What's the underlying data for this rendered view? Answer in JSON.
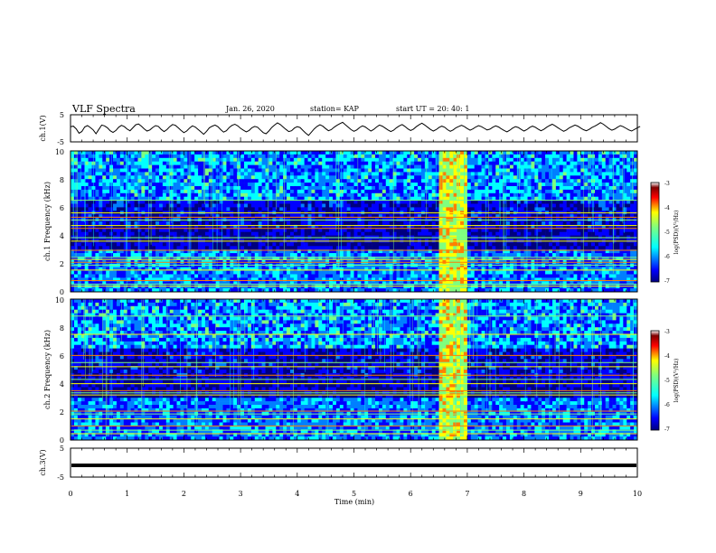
{
  "header": {
    "title": "VLF Spectra",
    "date": "Jan. 26, 2020",
    "station": "station= KAP",
    "start": "start  UT =   20: 40: 1"
  },
  "chart_data": [
    {
      "type": "line",
      "ylabel": "ch.1(V)",
      "ylim": [
        -5,
        5
      ],
      "yticks": [
        "5",
        "-5"
      ],
      "xlim": [
        0,
        10
      ],
      "x_step": 0.05,
      "y": [
        0.6,
        0.8,
        -0.2,
        -1.8,
        -1.2,
        0.5,
        1.0,
        0.3,
        -0.6,
        -2.0,
        -0.4,
        1.2,
        0.9,
        0.2,
        -0.9,
        -1.5,
        -0.8,
        0.4,
        1.1,
        0.6,
        -0.3,
        -0.9,
        0.2,
        1.3,
        1.6,
        0.8,
        -0.2,
        -1.0,
        -0.6,
        0.3,
        1.0,
        0.7,
        -0.4,
        -1.2,
        -0.5,
        0.6,
        1.4,
        1.1,
        0.2,
        -0.8,
        -1.6,
        -1.0,
        0.1,
        0.9,
        0.5,
        -0.4,
        -1.3,
        -2.2,
        -1.1,
        0.2,
        0.8,
        1.2,
        0.6,
        -0.5,
        -1.4,
        -0.9,
        0.3,
        1.1,
        1.5,
        0.9,
        0.0,
        -0.7,
        -1.3,
        -0.8,
        0.2,
        0.7,
        0.4,
        -0.6,
        -1.6,
        -2.0,
        -1.0,
        0.3,
        1.2,
        2.0,
        1.4,
        0.5,
        -0.4,
        -1.2,
        -0.9,
        0.1,
        0.6,
        0.3,
        -0.8,
        -1.8,
        -2.6,
        -1.4,
        -0.2,
        0.7,
        1.3,
        0.8,
        -0.1,
        -0.9,
        -0.5,
        0.4,
        1.1,
        1.7,
        2.2,
        1.3,
        0.4,
        -0.5,
        -1.1,
        -0.6,
        0.3,
        0.9,
        0.5,
        -0.3,
        -1.0,
        -0.4,
        0.5,
        1.2,
        0.8,
        0.1,
        -0.6,
        -1.2,
        -0.7,
        0.2,
        0.9,
        1.4,
        0.7,
        -0.2,
        -0.8,
        -0.3,
        0.6,
        1.3,
        1.9,
        1.2,
        0.4,
        -0.4,
        -1.0,
        -0.5,
        0.3,
        0.8,
        0.4,
        -0.5,
        -1.1,
        -0.6,
        0.2,
        0.7,
        1.1,
        0.6,
        -0.1,
        -0.7,
        -0.2,
        0.5,
        1.0,
        0.6,
        0.0,
        -0.6,
        -0.3,
        0.4,
        0.9,
        0.5,
        -0.2,
        -0.8,
        -1.3,
        -0.7,
        0.1,
        0.6,
        0.3,
        -0.4,
        -1.0,
        -0.5,
        0.3,
        0.8,
        0.4,
        -0.3,
        -0.9,
        -0.4,
        0.4,
        1.0,
        1.5,
        0.9,
        0.2,
        -0.5,
        -1.1,
        -0.6,
        0.2,
        0.7,
        1.2,
        0.8,
        0.1,
        -0.5,
        -0.9,
        -0.4,
        0.3,
        0.8,
        1.4,
        2.1,
        1.5,
        0.7,
        -0.1,
        -0.7,
        -0.3,
        0.4,
        1.0,
        0.6,
        0.0,
        -0.6,
        -1.0,
        -0.4,
        0.2,
        0.7
      ]
    },
    {
      "type": "heatmap",
      "ylabel": "ch.1 Frequency (kHz)",
      "ylim": [
        0,
        10
      ],
      "yticks": [
        "0",
        "2",
        "4",
        "6",
        "8",
        "10"
      ],
      "xlim": [
        0,
        10
      ],
      "colorbar": {
        "label": "log(PSD)(V²/Hz)",
        "range": [
          -7,
          -3
        ],
        "ticks": [
          "-3",
          "-4",
          "-5",
          "-6",
          "-7"
        ],
        "colors": [
          "#00007f",
          "#0000ff",
          "#007fff",
          "#00ffff",
          "#7fff7f",
          "#ffff00",
          "#ff7f00",
          "#ff0000",
          "#7f0000",
          "#ffffff"
        ]
      },
      "lines_khz": [
        0.4,
        0.55,
        0.8,
        1.55,
        1.9,
        2.1,
        2.3,
        2.45,
        2.95,
        3.6,
        3.85,
        4.5,
        4.7,
        5.1,
        5.3,
        5.6,
        6.5
      ],
      "bright_interval_min": [
        6.5,
        7.0
      ]
    },
    {
      "type": "heatmap",
      "ylabel": "ch.2 Frequency (kHz)",
      "ylim": [
        0,
        10
      ],
      "yticks": [
        "0",
        "2",
        "4",
        "6",
        "8",
        "10"
      ],
      "xlim": [
        0,
        10
      ],
      "colorbar": {
        "label": "log(PSD)(V²/Hz)",
        "range": [
          -7,
          -3
        ],
        "ticks": [
          "-3",
          "-4",
          "-5",
          "-6",
          "-7"
        ],
        "colors": [
          "#00007f",
          "#0000ff",
          "#007fff",
          "#00ffff",
          "#7fff7f",
          "#ffff00",
          "#ff7f00",
          "#ff0000",
          "#7f0000",
          "#ffffff"
        ]
      },
      "lines_khz": [
        0.45,
        0.7,
        1.0,
        1.5,
        1.85,
        2.05,
        3.2,
        3.35,
        3.5,
        4.0,
        4.3,
        4.6,
        5.2,
        5.5,
        6.0,
        7.5,
        8.8
      ],
      "bright_interval_min": [
        6.5,
        7.0
      ]
    },
    {
      "type": "line",
      "ylabel": "ch.3(V)",
      "ylim": [
        -5,
        5
      ],
      "yticks": [
        "5",
        "-5"
      ],
      "xlim": [
        0,
        10
      ],
      "xlabel": "Time (min)",
      "xticks": [
        "0",
        "1",
        "2",
        "3",
        "4",
        "5",
        "6",
        "7",
        "8",
        "9",
        "10"
      ],
      "value": 0.0
    }
  ]
}
